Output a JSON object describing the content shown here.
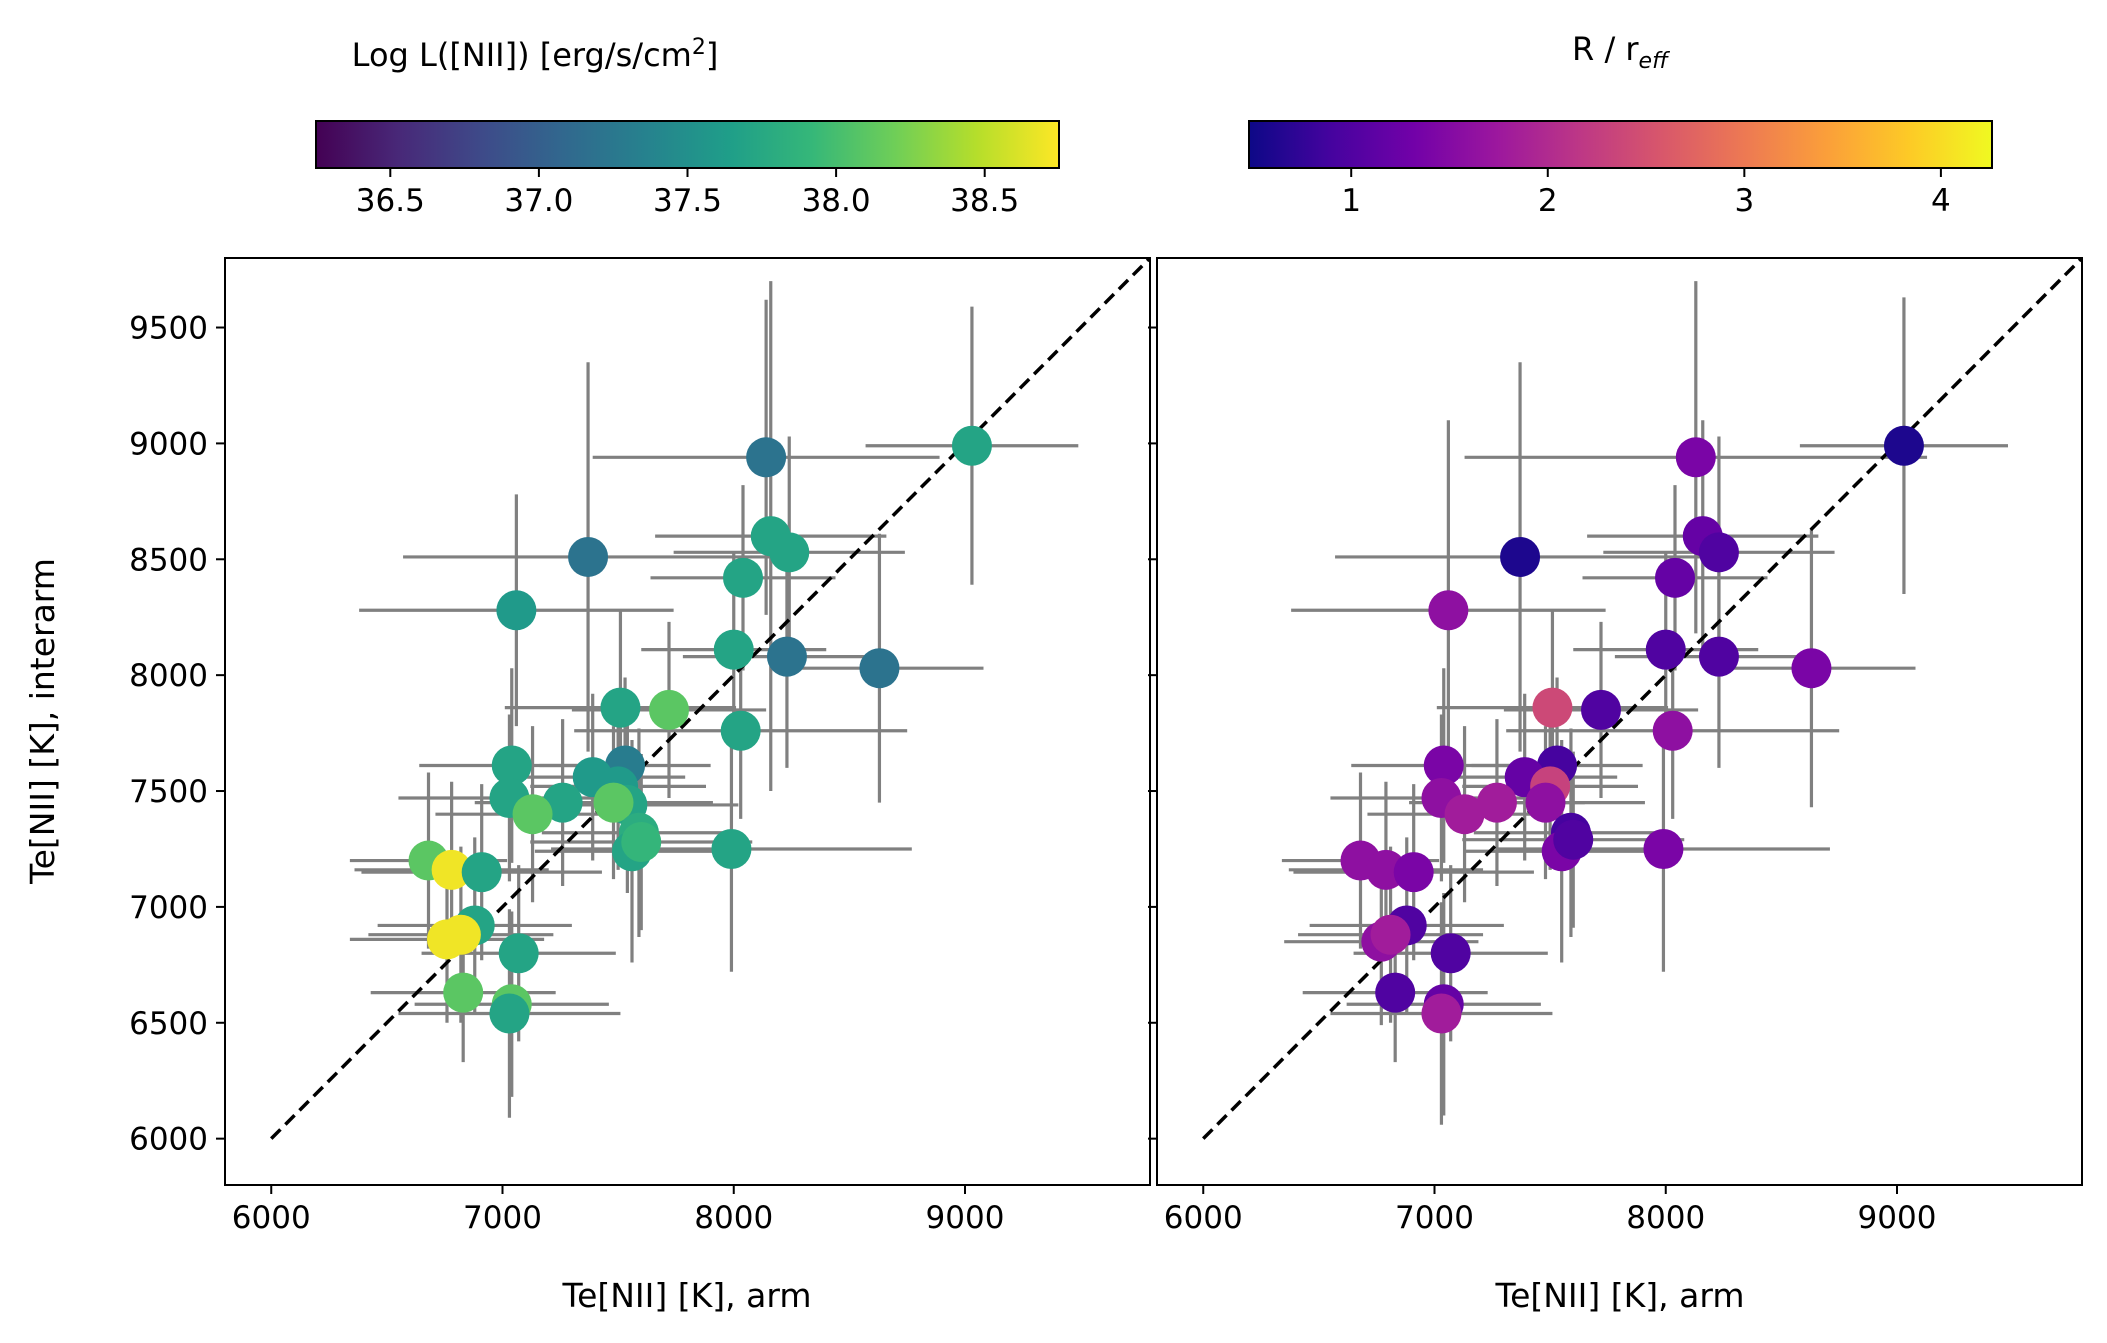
{
  "chart_data": [
    {
      "type": "scatter",
      "panel": "left",
      "xlabel": "Te[NII] [K], arm",
      "ylabel": "Te[NII] [K], interarm",
      "xlim": [
        5800,
        9800
      ],
      "ylim": [
        5800,
        9800
      ],
      "xticks": [
        6000,
        7000,
        8000,
        9000
      ],
      "yticks": [
        6000,
        6500,
        7000,
        7500,
        8000,
        8500,
        9000,
        9500
      ],
      "reference_line": {
        "style": "dashed",
        "color": "#000000",
        "from": [
          6000,
          6000
        ],
        "to": [
          9800,
          9800
        ]
      },
      "colorbar": {
        "label_main": "Log L([NII]) [erg/s/cm",
        "label_sup": "2",
        "label_end": "]",
        "colormap": "viridis",
        "range": [
          36.25,
          38.75
        ],
        "ticks": [
          "36.5",
          "37.0",
          "37.5",
          "38.0",
          "38.5"
        ],
        "tick_values": [
          36.5,
          37.0,
          37.5,
          38.0,
          38.5
        ],
        "stops": [
          "#440154",
          "#482878",
          "#3e4a89",
          "#31688e",
          "#26828e",
          "#1f9e89",
          "#35b779",
          "#6ece58",
          "#b5de2b",
          "#fde725"
        ]
      },
      "errorbar_color": "#808080",
      "points": [
        {
          "x": 9030,
          "y": 8990,
          "xerr": 460,
          "yerr": 600,
          "c": 37.7
        },
        {
          "x": 8140,
          "y": 8940,
          "xerr": 750,
          "yerr": 680,
          "c": 37.2
        },
        {
          "x": 8160,
          "y": 8600,
          "xerr": 500,
          "yerr": 1100,
          "c": 37.7
        },
        {
          "x": 8240,
          "y": 8530,
          "xerr": 500,
          "yerr": 500,
          "c": 37.7
        },
        {
          "x": 7370,
          "y": 8510,
          "xerr": 800,
          "yerr": 840,
          "c": 37.2
        },
        {
          "x": 8040,
          "y": 8420,
          "xerr": 400,
          "yerr": 400,
          "c": 37.7
        },
        {
          "x": 7060,
          "y": 8280,
          "xerr": 680,
          "yerr": 500,
          "c": 37.6
        },
        {
          "x": 8000,
          "y": 8110,
          "xerr": 400,
          "yerr": 420,
          "c": 37.7
        },
        {
          "x": 8230,
          "y": 8080,
          "xerr": 450,
          "yerr": 480,
          "c": 37.2
        },
        {
          "x": 8630,
          "y": 8030,
          "xerr": 450,
          "yerr": 580,
          "c": 37.2
        },
        {
          "x": 7510,
          "y": 7860,
          "xerr": 500,
          "yerr": 420,
          "c": 37.7
        },
        {
          "x": 7720,
          "y": 7850,
          "xerr": 420,
          "yerr": 380,
          "c": 38.1
        },
        {
          "x": 8030,
          "y": 7760,
          "xerr": 720,
          "yerr": 380,
          "c": 37.7
        },
        {
          "x": 7040,
          "y": 7610,
          "xerr": 400,
          "yerr": 420,
          "c": 37.7
        },
        {
          "x": 7530,
          "y": 7610,
          "xerr": 370,
          "yerr": 380,
          "c": 37.3
        },
        {
          "x": 7390,
          "y": 7560,
          "xerr": 400,
          "yerr": 360,
          "c": 37.6
        },
        {
          "x": 7030,
          "y": 7470,
          "xerr": 480,
          "yerr": 360,
          "c": 37.7
        },
        {
          "x": 7260,
          "y": 7450,
          "xerr": 380,
          "yerr": 360,
          "c": 37.7
        },
        {
          "x": 7130,
          "y": 7400,
          "xerr": 420,
          "yerr": 380,
          "c": 38.1
        },
        {
          "x": 7500,
          "y": 7520,
          "xerr": 380,
          "yerr": 360,
          "c": 37.6
        },
        {
          "x": 7540,
          "y": 7440,
          "xerr": 480,
          "yerr": 380,
          "c": 37.7
        },
        {
          "x": 7480,
          "y": 7450,
          "xerr": 430,
          "yerr": 330,
          "c": 38.1
        },
        {
          "x": 7590,
          "y": 7320,
          "xerr": 420,
          "yerr": 450,
          "c": 37.8
        },
        {
          "x": 7560,
          "y": 7240,
          "xerr": 420,
          "yerr": 480,
          "c": 37.7
        },
        {
          "x": 7600,
          "y": 7280,
          "xerr": 480,
          "yerr": 380,
          "c": 37.9
        },
        {
          "x": 7990,
          "y": 7250,
          "xerr": 780,
          "yerr": 530,
          "c": 37.7
        },
        {
          "x": 6680,
          "y": 7200,
          "xerr": 340,
          "yerr": 380,
          "c": 38.1
        },
        {
          "x": 6780,
          "y": 7160,
          "xerr": 420,
          "yerr": 380,
          "c": 38.7
        },
        {
          "x": 6910,
          "y": 7150,
          "xerr": 520,
          "yerr": 380,
          "c": 37.7
        },
        {
          "x": 6880,
          "y": 6920,
          "xerr": 420,
          "yerr": 380,
          "c": 37.7
        },
        {
          "x": 6760,
          "y": 6860,
          "xerr": 420,
          "yerr": 360,
          "c": 38.7
        },
        {
          "x": 6820,
          "y": 6880,
          "xerr": 400,
          "yerr": 380,
          "c": 38.7
        },
        {
          "x": 7070,
          "y": 6800,
          "xerr": 420,
          "yerr": 380,
          "c": 37.7
        },
        {
          "x": 6830,
          "y": 6630,
          "xerr": 400,
          "yerr": 300,
          "c": 38.1
        },
        {
          "x": 7040,
          "y": 6580,
          "xerr": 420,
          "yerr": 400,
          "c": 38.1
        },
        {
          "x": 7030,
          "y": 6540,
          "xerr": 480,
          "yerr": 450,
          "c": 37.7
        }
      ]
    },
    {
      "type": "scatter",
      "panel": "right",
      "xlabel": "Te[NII] [K], arm",
      "ylabel": "",
      "xlim": [
        5800,
        9800
      ],
      "ylim": [
        5800,
        9800
      ],
      "xticks": [
        6000,
        7000,
        8000,
        9000
      ],
      "yticks": [
        6000,
        6500,
        7000,
        7500,
        8000,
        8500,
        9000,
        9500
      ],
      "reference_line": {
        "style": "dashed",
        "color": "#000000",
        "from": [
          6000,
          6000
        ],
        "to": [
          9800,
          9800
        ]
      },
      "colorbar": {
        "label_main": "R / r",
        "label_sub": "eff",
        "colormap": "plasma",
        "range": [
          0.48,
          4.26
        ],
        "ticks": [
          "1",
          "2",
          "3",
          "4"
        ],
        "tick_values": [
          1,
          2,
          3,
          4
        ],
        "stops": [
          "#0d0887",
          "#46039f",
          "#7201a8",
          "#9c179e",
          "#bd3786",
          "#d8576b",
          "#ed7953",
          "#fb9f3a",
          "#fdca26",
          "#f0f921"
        ]
      },
      "errorbar_color": "#808080",
      "points": [
        {
          "x": 9030,
          "y": 8990,
          "xerr": 450,
          "yerr": 640,
          "c": 0.6
        },
        {
          "x": 8130,
          "y": 8940,
          "xerr": 1000,
          "yerr": 760,
          "c": 1.4
        },
        {
          "x": 8160,
          "y": 8600,
          "xerr": 500,
          "yerr": 500,
          "c": 1.2
        },
        {
          "x": 8230,
          "y": 8530,
          "xerr": 500,
          "yerr": 500,
          "c": 1.0
        },
        {
          "x": 7370,
          "y": 8510,
          "xerr": 800,
          "yerr": 840,
          "c": 0.6
        },
        {
          "x": 8040,
          "y": 8420,
          "xerr": 400,
          "yerr": 400,
          "c": 1.2
        },
        {
          "x": 7060,
          "y": 8280,
          "xerr": 680,
          "yerr": 820,
          "c": 1.6
        },
        {
          "x": 8000,
          "y": 8110,
          "xerr": 400,
          "yerr": 420,
          "c": 1.0
        },
        {
          "x": 8230,
          "y": 8080,
          "xerr": 450,
          "yerr": 480,
          "c": 1.0
        },
        {
          "x": 8630,
          "y": 8030,
          "xerr": 450,
          "yerr": 600,
          "c": 1.4
        },
        {
          "x": 7510,
          "y": 7860,
          "xerr": 500,
          "yerr": 420,
          "c": 2.4
        },
        {
          "x": 7720,
          "y": 7850,
          "xerr": 420,
          "yerr": 380,
          "c": 1.0
        },
        {
          "x": 8030,
          "y": 7760,
          "xerr": 720,
          "yerr": 380,
          "c": 1.6
        },
        {
          "x": 7040,
          "y": 7610,
          "xerr": 400,
          "yerr": 420,
          "c": 1.4
        },
        {
          "x": 7530,
          "y": 7610,
          "xerr": 370,
          "yerr": 380,
          "c": 0.9
        },
        {
          "x": 7390,
          "y": 7560,
          "xerr": 400,
          "yerr": 360,
          "c": 1.2
        },
        {
          "x": 7030,
          "y": 7470,
          "xerr": 480,
          "yerr": 360,
          "c": 1.6
        },
        {
          "x": 7270,
          "y": 7450,
          "xerr": 380,
          "yerr": 360,
          "c": 1.8
        },
        {
          "x": 7130,
          "y": 7400,
          "xerr": 420,
          "yerr": 380,
          "c": 1.8
        },
        {
          "x": 7500,
          "y": 7520,
          "xerr": 380,
          "yerr": 360,
          "c": 2.3
        },
        {
          "x": 7480,
          "y": 7450,
          "xerr": 430,
          "yerr": 330,
          "c": 1.6
        },
        {
          "x": 7590,
          "y": 7320,
          "xerr": 420,
          "yerr": 450,
          "c": 0.9
        },
        {
          "x": 7550,
          "y": 7240,
          "xerr": 420,
          "yerr": 480,
          "c": 1.4
        },
        {
          "x": 7600,
          "y": 7290,
          "xerr": 480,
          "yerr": 380,
          "c": 1.0
        },
        {
          "x": 7990,
          "y": 7250,
          "xerr": 720,
          "yerr": 530,
          "c": 1.4
        },
        {
          "x": 6680,
          "y": 7200,
          "xerr": 340,
          "yerr": 380,
          "c": 1.6
        },
        {
          "x": 6790,
          "y": 7160,
          "xerr": 420,
          "yerr": 380,
          "c": 1.6
        },
        {
          "x": 6910,
          "y": 7150,
          "xerr": 520,
          "yerr": 380,
          "c": 1.4
        },
        {
          "x": 6880,
          "y": 6920,
          "xerr": 420,
          "yerr": 380,
          "c": 1.0
        },
        {
          "x": 6770,
          "y": 6850,
          "xerr": 420,
          "yerr": 360,
          "c": 1.6
        },
        {
          "x": 6810,
          "y": 6880,
          "xerr": 400,
          "yerr": 380,
          "c": 1.8
        },
        {
          "x": 7070,
          "y": 6800,
          "xerr": 420,
          "yerr": 380,
          "c": 1.0
        },
        {
          "x": 6830,
          "y": 6630,
          "xerr": 400,
          "yerr": 300,
          "c": 1.0
        },
        {
          "x": 7040,
          "y": 6580,
          "xerr": 420,
          "yerr": 480,
          "c": 1.2
        },
        {
          "x": 7030,
          "y": 6540,
          "xerr": 480,
          "yerr": 480,
          "c": 1.8
        }
      ]
    }
  ]
}
